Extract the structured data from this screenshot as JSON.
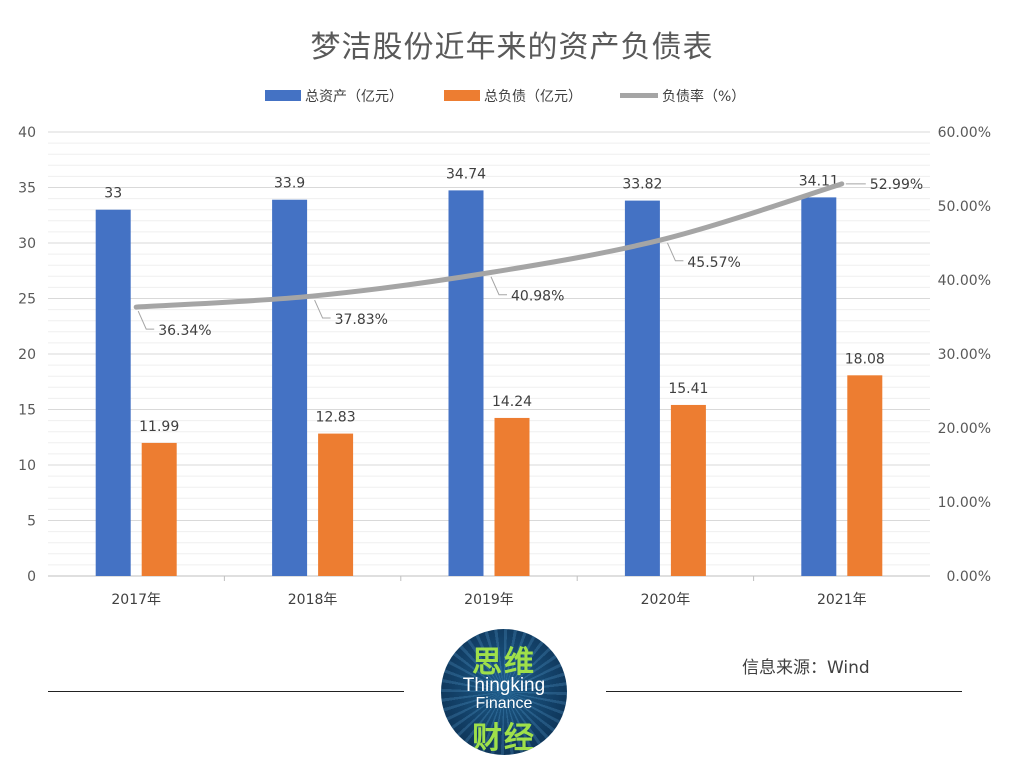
{
  "chart_data": {
    "type": "bar",
    "title": "梦洁股份近年来的资产负债表",
    "categories": [
      "2017年",
      "2018年",
      "2019年",
      "2020年",
      "2021年"
    ],
    "series": [
      {
        "name": "总资产（亿元）",
        "kind": "bar",
        "axis": "left",
        "color": "#4472C4",
        "values": [
          33,
          33.9,
          34.74,
          33.82,
          34.11
        ],
        "labels": [
          "33",
          "33.9",
          "34.74",
          "33.82",
          "34.11"
        ]
      },
      {
        "name": "总负债（亿元）",
        "kind": "bar",
        "axis": "left",
        "color": "#ED7D31",
        "values": [
          11.99,
          12.83,
          14.24,
          15.41,
          18.08
        ],
        "labels": [
          "11.99",
          "12.83",
          "14.24",
          "15.41",
          "18.08"
        ]
      },
      {
        "name": "负债率（%）",
        "kind": "line",
        "axis": "right",
        "color": "#A5A5A5",
        "values": [
          36.34,
          37.83,
          40.98,
          45.57,
          52.99
        ],
        "labels": [
          "36.34%",
          "37.83%",
          "40.98%",
          "45.57%",
          "52.99%"
        ]
      }
    ],
    "ylim": [
      0,
      40
    ],
    "y_ticks": [
      "0",
      "5",
      "10",
      "15",
      "20",
      "25",
      "30",
      "35",
      "40"
    ],
    "y2lim": [
      0,
      60
    ],
    "y2_ticks": [
      "0.00%",
      "10.00%",
      "20.00%",
      "30.00%",
      "40.00%",
      "50.00%",
      "60.00%"
    ],
    "legend_position": "top",
    "grid": true
  },
  "source_text": "信息来源：Wind",
  "logo": {
    "cn_top": "思维",
    "en_line1": "Thingking",
    "en_line2": "Finance",
    "cn_bottom": "财经"
  }
}
